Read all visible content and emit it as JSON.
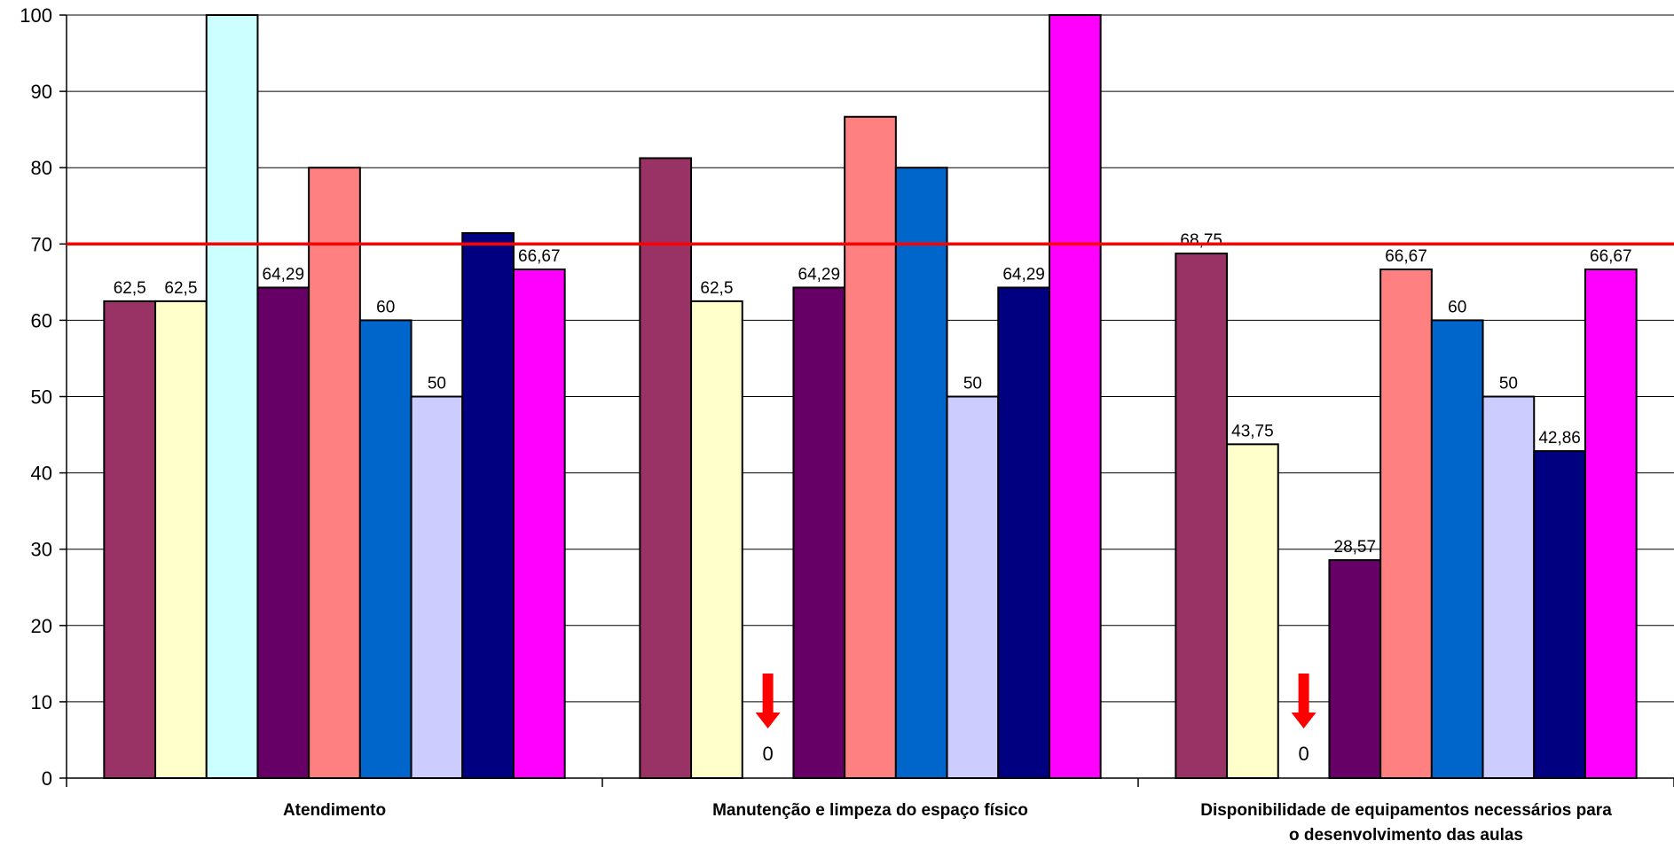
{
  "chart_data": {
    "type": "bar",
    "title": "",
    "xlabel": "",
    "ylabel": "",
    "ylim": [
      0,
      100
    ],
    "yticks": [
      "0",
      "10",
      "20",
      "30",
      "40",
      "50",
      "60",
      "70",
      "80",
      "90",
      "100"
    ],
    "grid": true,
    "legend": "none",
    "categories": [
      [
        "Atendimento"
      ],
      [
        "Manutenção e limpeza do espaço físico"
      ],
      [
        "Disponibilidade de equipamentos necessários para",
        "o desenvolvimento das aulas"
      ]
    ],
    "series_colors": [
      "#993366",
      "#FFFFCC",
      "#CCFFFF",
      "#660066",
      "#FF8080",
      "#0066CC",
      "#CCCCFF",
      "#000080",
      "#FF00FF"
    ],
    "values": [
      [
        62.5,
        62.5,
        100,
        64.29,
        80,
        60,
        50,
        71.43,
        66.67
      ],
      [
        81.25,
        62.5,
        0,
        64.29,
        86.67,
        80,
        50,
        64.29,
        100
      ],
      [
        68.75,
        43.75,
        0,
        28.57,
        66.67,
        60,
        50,
        42.86,
        66.67
      ]
    ],
    "data_labels": [
      [
        "62,5",
        "62,5",
        "",
        "64,29",
        "",
        "60",
        "50",
        "",
        "66,67"
      ],
      [
        "",
        "62,5",
        "0",
        "64,29",
        "",
        "",
        "50",
        "64,29",
        ""
      ],
      [
        "68,75",
        "43,75",
        "0",
        "28,57",
        "66,67",
        "60",
        "50",
        "42,86",
        "66,67"
      ]
    ],
    "reference_line": {
      "value": 70,
      "color": "#FF0000"
    },
    "zero_marker_color": "#FF0000"
  }
}
